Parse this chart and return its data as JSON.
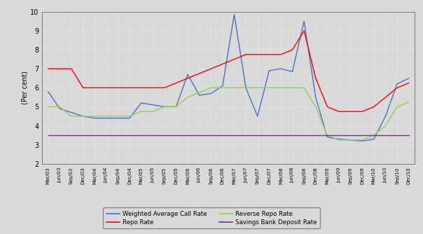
{
  "labels": [
    "Mar/03",
    "Jun/03",
    "Sep/03",
    "Dec/03",
    "Mar/04",
    "Jun/04",
    "Sep/04",
    "Dec/04",
    "Mar/05",
    "Jun/05",
    "Sep/05",
    "Dec/05",
    "Mar/06",
    "Jun/06",
    "Sep/06",
    "Dec/06",
    "Mar/07",
    "Jun/07",
    "Sep/07",
    "Dec/07",
    "Mar/08",
    "Jun/08",
    "Sep/08",
    "Dec/08",
    "Mar/09",
    "Jun/09",
    "Sep/09",
    "Dec/09",
    "Mar/10",
    "Jun/10",
    "Sep/10",
    "Dec/10"
  ],
  "weighted_avg_call_rate": [
    5.8,
    4.9,
    4.7,
    4.5,
    4.4,
    4.4,
    4.4,
    4.4,
    5.2,
    5.1,
    5.0,
    5.0,
    6.7,
    5.6,
    5.7,
    6.1,
    9.85,
    6.0,
    4.5,
    6.9,
    7.0,
    6.85,
    9.5,
    5.5,
    3.4,
    3.3,
    3.25,
    3.2,
    3.3,
    4.5,
    6.2,
    6.5
  ],
  "repo_rate": [
    7.0,
    7.0,
    7.0,
    6.0,
    6.0,
    6.0,
    6.0,
    6.0,
    6.0,
    6.0,
    6.0,
    6.25,
    6.5,
    6.75,
    7.0,
    7.25,
    7.5,
    7.75,
    7.75,
    7.75,
    7.75,
    8.0,
    9.0,
    6.5,
    5.0,
    4.75,
    4.75,
    4.75,
    5.0,
    5.5,
    6.0,
    6.25
  ],
  "reverse_repo_rate": [
    5.0,
    5.0,
    4.5,
    4.5,
    4.5,
    4.5,
    4.5,
    4.5,
    4.75,
    4.75,
    5.0,
    5.0,
    5.5,
    5.75,
    6.0,
    6.0,
    6.0,
    6.0,
    6.0,
    6.0,
    6.0,
    6.0,
    6.0,
    5.0,
    3.5,
    3.25,
    3.25,
    3.25,
    3.5,
    4.0,
    5.0,
    5.25
  ],
  "savings_bank_deposit_rate": [
    3.5,
    3.5,
    3.5,
    3.5,
    3.5,
    3.5,
    3.5,
    3.5,
    3.5,
    3.5,
    3.5,
    3.5,
    3.5,
    3.5,
    3.5,
    3.5,
    3.5,
    3.5,
    3.5,
    3.5,
    3.5,
    3.5,
    3.5,
    3.5,
    3.5,
    3.5,
    3.5,
    3.5,
    3.5,
    3.5,
    3.5,
    3.5
  ],
  "ylim": [
    2,
    10
  ],
  "yticks": [
    2,
    3,
    4,
    5,
    6,
    7,
    8,
    9,
    10
  ],
  "ylabel": "(Per cent)",
  "color_call": "#4472C4",
  "color_repo": "#FF0000",
  "color_reverse_repo": "#92D050",
  "color_savings": "#7030A0",
  "bg_color": "#D9D9D9",
  "legend_call": "Weighted Average Call Rate",
  "legend_repo": "Repo Rate",
  "legend_reverse": "Reverse Repo Rate",
  "legend_savings": "Savings Bank Deposit Rate"
}
